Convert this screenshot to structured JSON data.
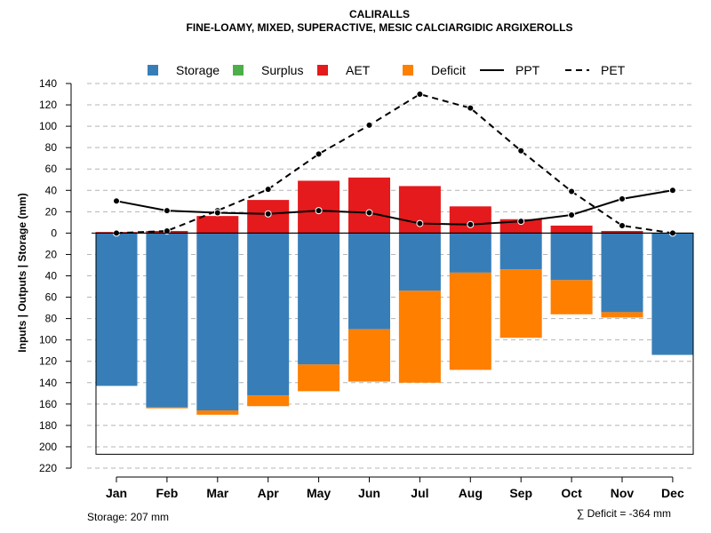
{
  "chart_data": {
    "type": "bar",
    "title": "CALIRALLS",
    "subtitle": "FINE-LOAMY, MIXED, SUPERACTIVE, MESIC CALCIARGIDIC ARGIXEROLLS",
    "ylabel": "Inputs | Outputs | Storage     (mm)",
    "ylim": [
      -220,
      140
    ],
    "yticks": [
      140,
      120,
      100,
      80,
      60,
      40,
      20,
      0,
      -20,
      -40,
      -60,
      -80,
      -100,
      -120,
      -140,
      -160,
      -180,
      -200,
      -220
    ],
    "ytick_labels": [
      "140",
      "120",
      "100",
      "80",
      "60",
      "40",
      "20",
      "0",
      "20",
      "40",
      "60",
      "80",
      "100",
      "120",
      "140",
      "160",
      "180",
      "200",
      "220"
    ],
    "grid": true,
    "legend_position": "top",
    "categories": [
      "Jan",
      "Feb",
      "Mar",
      "Apr",
      "May",
      "Jun",
      "Jul",
      "Aug",
      "Sep",
      "Oct",
      "Nov",
      "Dec"
    ],
    "series": [
      {
        "name": "Storage",
        "kind": "bar",
        "color": "#377EB8",
        "values": [
          -143,
          -163,
          -166,
          -152,
          -123,
          -90,
          -54,
          -37,
          -34,
          -44,
          -74,
          -114
        ]
      },
      {
        "name": "Surplus",
        "kind": "bar",
        "color": "#4DAF4A",
        "values": [
          0,
          0,
          0,
          0,
          0,
          0,
          0,
          0,
          0,
          0,
          0,
          0
        ]
      },
      {
        "name": "AET",
        "kind": "bar",
        "color": "#E41A1C",
        "values": [
          1,
          2,
          16,
          31,
          49,
          52,
          44,
          25,
          13,
          7,
          2,
          0
        ]
      },
      {
        "name": "Deficit",
        "kind": "bar",
        "color": "#FF7F00",
        "values": [
          0,
          -1,
          -4,
          -10,
          -25,
          -49,
          -86,
          -91,
          -64,
          -32,
          -5,
          0
        ]
      },
      {
        "name": "PPT",
        "kind": "line",
        "style": "solid",
        "color": "#000000",
        "values": [
          30,
          21,
          19,
          18,
          21,
          19,
          9,
          8,
          11,
          17,
          32,
          40
        ]
      },
      {
        "name": "PET",
        "kind": "line",
        "style": "dashed",
        "color": "#000000",
        "values": [
          0,
          2,
          21,
          41,
          74,
          101,
          130,
          117,
          77,
          39,
          7,
          0
        ]
      }
    ],
    "footer_left": "Storage: 207 mm",
    "footer_right": "∑ Deficit = -364 mm"
  }
}
